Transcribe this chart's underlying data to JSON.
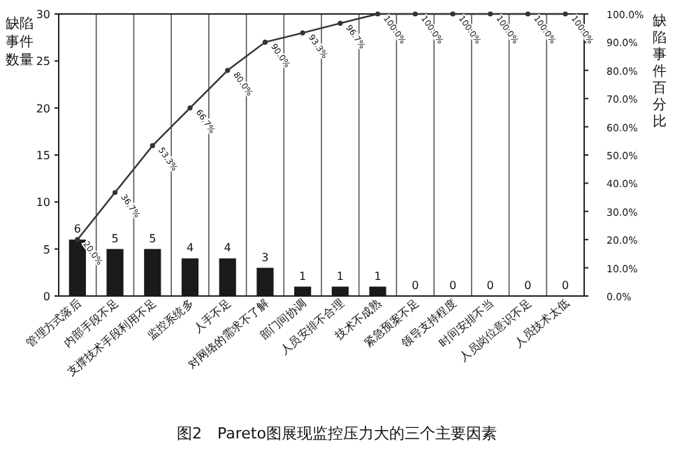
{
  "chart_data": {
    "type": "bar",
    "title": "图2　Pareto图展现监控压力大的三个主要因素",
    "ylabel": "缺陷事件数量",
    "y2label": "缺陷事件百分比",
    "categories": [
      "管理方式落后",
      "内部手段不足",
      "支撑技术手段利用不足",
      "监控系统多",
      "人手不足",
      "对网络的需求不了解",
      "部门间协调",
      "人员安排不合理",
      "技术不成熟",
      "紧急预案不足",
      "领导支持程度",
      "时间安排不当",
      "人员岗位意识不足",
      "人员技术太低"
    ],
    "ylim": [
      0,
      30
    ],
    "yticks": [
      0,
      5,
      10,
      15,
      20,
      25,
      30
    ],
    "y2lim": [
      0,
      100
    ],
    "y2ticks": [
      {
        "value": 0,
        "label": "0.0%"
      },
      {
        "value": 10,
        "label": "10.0%"
      },
      {
        "value": 20,
        "label": "20.0%"
      },
      {
        "value": 30,
        "label": "30.0%"
      },
      {
        "value": 40,
        "label": "40.0%"
      },
      {
        "value": 50,
        "label": "50.0%"
      },
      {
        "value": 60,
        "label": "60.0%"
      },
      {
        "value": 70,
        "label": "70.0%"
      },
      {
        "value": 80,
        "label": "80.0%"
      },
      {
        "value": 90,
        "label": "90.0%"
      },
      {
        "value": 100,
        "label": "100.0%"
      }
    ],
    "grid": "x",
    "data_labels": true,
    "series": [
      {
        "color": "#1a1a1a",
        "values": [
          6,
          5,
          5,
          4,
          4,
          3,
          1,
          1,
          1,
          0,
          0,
          0,
          0,
          0
        ]
      },
      {
        "type": "line",
        "axis": "y2",
        "color": "#333333",
        "marker": "circle",
        "values": [
          20,
          36.7,
          53.3,
          66.7,
          80,
          90,
          93.3,
          96.7,
          100,
          100,
          100,
          100,
          100,
          100
        ],
        "value_labels": [
          "20.0%",
          "36.7%",
          "53.3%",
          "66.7%",
          "80.0%",
          "90.0%",
          "93.3%",
          "96.7%",
          "100.0%",
          "100.0%",
          "100.0%",
          "100.0%",
          "100.0%",
          "100.0%"
        ]
      }
    ]
  }
}
